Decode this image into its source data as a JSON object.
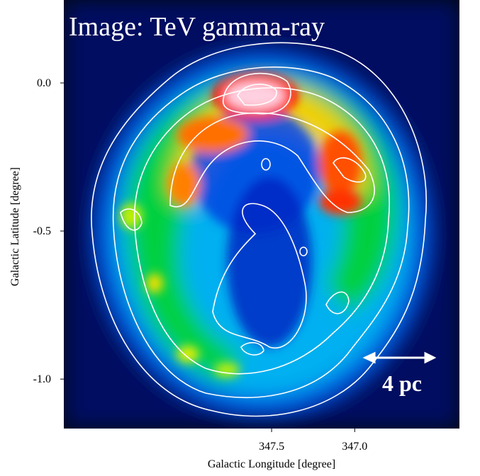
{
  "chart_data": {
    "type": "image",
    "annotations": [
      "Image: TeV gamma-ray",
      "4 pc"
    ],
    "x_label": "Galactic Longitude [degree]",
    "y_label": "Galactic Latitude [degree]",
    "xlim": [
      348.75,
      346.37
    ],
    "ylim": [
      -1.167,
      0.28
    ],
    "xticks": [
      347.5,
      {
        "value": 347,
        "label": "347.0"
      }
    ],
    "yticks": [
      {
        "value": 0,
        "label": "0.0"
      },
      -0.5,
      {
        "value": -1,
        "label": "-1.0"
      }
    ]
  }
}
